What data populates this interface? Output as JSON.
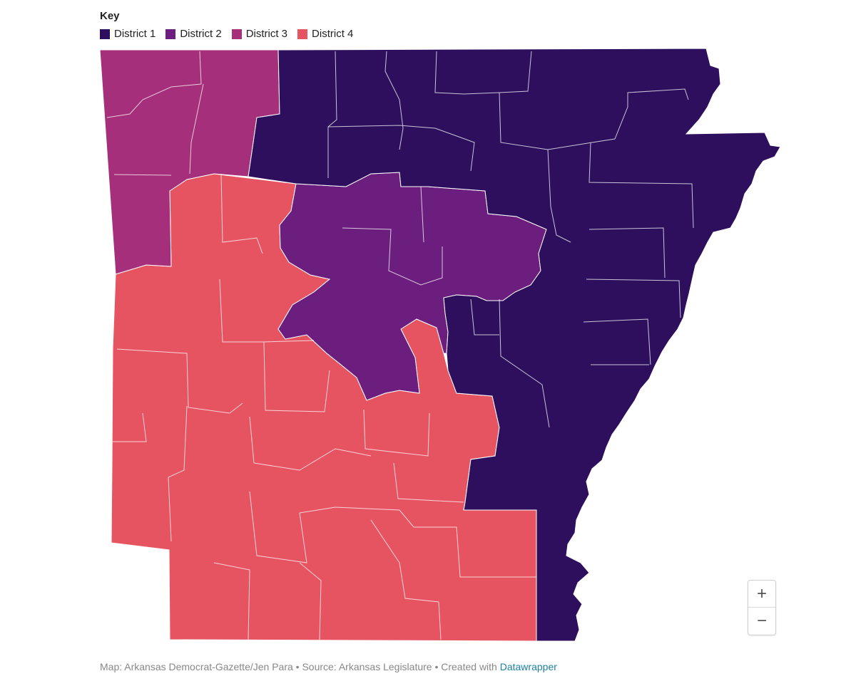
{
  "legend": {
    "title": "Key",
    "items": [
      {
        "label": "District 1",
        "color": "#2d0f5e"
      },
      {
        "label": "District 2",
        "color": "#6b1e7d"
      },
      {
        "label": "District 3",
        "color": "#a52f7a"
      },
      {
        "label": "District 4",
        "color": "#e65462"
      }
    ]
  },
  "zoom": {
    "in_label": "+",
    "out_label": "−"
  },
  "footer": {
    "text": "Map: Arkansas Democrat-Gazette/Jen Para • Source: Arkansas Legislature • Created with",
    "link_label": "Datawrapper"
  },
  "map": {
    "border_color": "#ffffff",
    "districts": [
      {
        "id": "district-1",
        "color": "#2d0f5e"
      },
      {
        "id": "district-2",
        "color": "#6b1e7d"
      },
      {
        "id": "district-3",
        "color": "#a52f7a"
      },
      {
        "id": "district-4",
        "color": "#e65462"
      }
    ]
  }
}
